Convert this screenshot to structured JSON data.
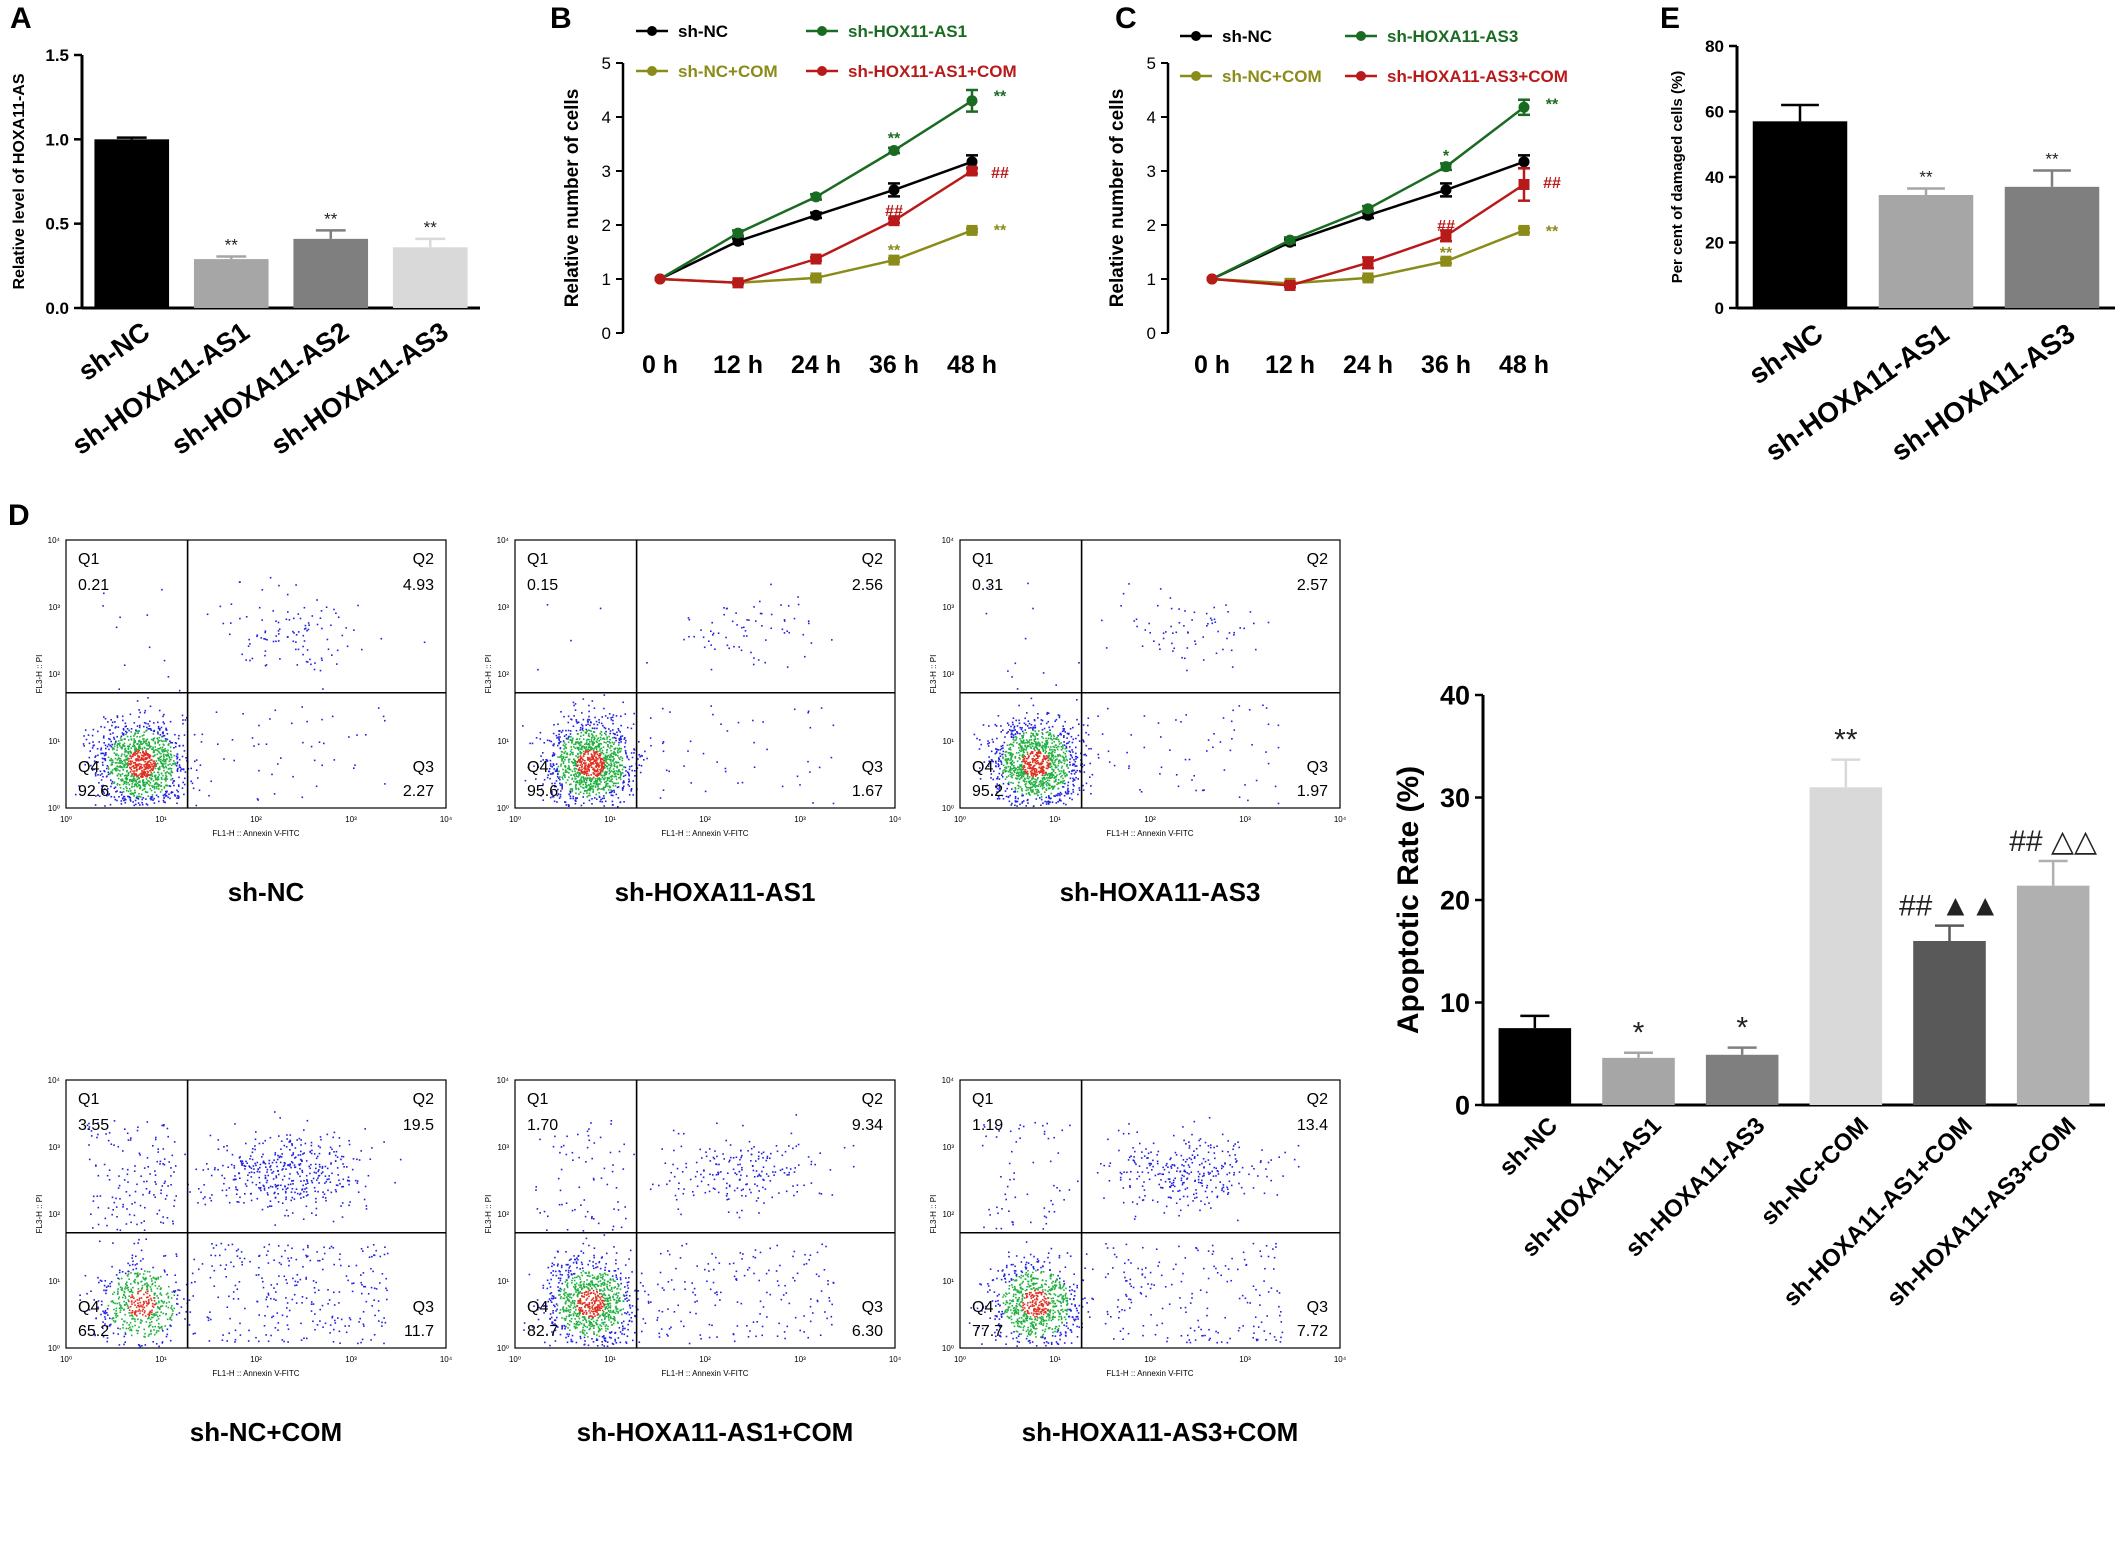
{
  "colors": {
    "black": "#000000",
    "green": "#1a6b22",
    "olive": "#8b8b1a",
    "red": "#b81a1a",
    "flow_low": "#2020e0",
    "flow_mid": "#20b040",
    "flow_high": "#e03020"
  },
  "chart_data": [
    {
      "panel": "A",
      "type": "bar",
      "ylabel": "Relative level of HOXA11-AS",
      "ylim": [
        0,
        1.5
      ],
      "yticks": [
        "0.0",
        "0.5",
        "1.0",
        "1.5"
      ],
      "categories": [
        "sh-NC",
        "sh-HOXA11-AS1",
        "sh-HOXA11-AS2",
        "sh-HOXA11-AS3"
      ],
      "values": [
        1.0,
        0.29,
        0.41,
        0.36
      ],
      "errors": [
        0.01,
        0.015,
        0.05,
        0.05
      ],
      "bar_colors": [
        "#000000",
        "#a6a6a6",
        "#7f7f7f",
        "#d9d9d9"
      ],
      "annotations": [
        "",
        "**",
        "**",
        "**"
      ]
    },
    {
      "panel": "B",
      "type": "line",
      "ylabel": "Relative number of cells",
      "ylim": [
        0,
        5
      ],
      "yticks": [
        "0",
        "1",
        "2",
        "3",
        "4",
        "5"
      ],
      "x": [
        "0 h",
        "12 h",
        "24 h",
        "36 h",
        "48 h"
      ],
      "series": [
        {
          "name": "sh-NC",
          "color": "#000000",
          "values": [
            1.0,
            1.7,
            2.18,
            2.65,
            3.17
          ],
          "errors": [
            0,
            0.05,
            0.05,
            0.12,
            0.12
          ]
        },
        {
          "name": "sh-HOX11-AS1",
          "color": "#1a6b22",
          "values": [
            1.0,
            1.85,
            2.52,
            3.38,
            4.3
          ],
          "errors": [
            0,
            0.05,
            0.05,
            0.05,
            0.2
          ]
        },
        {
          "name": "sh-NC+COM",
          "color": "#8b8b1a",
          "values": [
            1.0,
            0.93,
            1.02,
            1.35,
            1.9
          ],
          "errors": [
            0,
            0.02,
            0.03,
            0.03,
            0.03
          ]
        },
        {
          "name": "sh-HOX11-AS1+COM",
          "color": "#b81a1a",
          "values": [
            1.0,
            0.93,
            1.37,
            2.08,
            3.0
          ],
          "errors": [
            0,
            0.02,
            0.03,
            0.04,
            0.05
          ]
        }
      ],
      "annotations": [
        {
          "text": "**",
          "x": "36 h",
          "y": 3.62,
          "color": "#1a6b22"
        },
        {
          "text": "**",
          "x": "48 h",
          "y": 4.4,
          "color": "#1a6b22",
          "side": "right"
        },
        {
          "text": "##",
          "x": "36 h",
          "y": 2.28,
          "color": "#b81a1a"
        },
        {
          "text": "##",
          "x": "48 h",
          "y": 2.98,
          "color": "#b81a1a",
          "side": "right"
        },
        {
          "text": "**",
          "x": "36 h",
          "y": 1.55,
          "color": "#8b8b1a"
        },
        {
          "text": "**",
          "x": "48 h",
          "y": 1.92,
          "color": "#8b8b1a",
          "side": "right"
        }
      ]
    },
    {
      "panel": "C",
      "type": "line",
      "ylabel": "Relative number of cells",
      "ylim": [
        0,
        5
      ],
      "yticks": [
        "0",
        "1",
        "2",
        "3",
        "4",
        "5"
      ],
      "x": [
        "0 h",
        "12 h",
        "24 h",
        "36 h",
        "48 h"
      ],
      "series": [
        {
          "name": "sh-NC",
          "color": "#000000",
          "values": [
            1.0,
            1.68,
            2.18,
            2.65,
            3.17
          ],
          "errors": [
            0,
            0.05,
            0.05,
            0.12,
            0.12
          ]
        },
        {
          "name": "sh-HOXA11-AS3",
          "color": "#1a6b22",
          "values": [
            1.0,
            1.72,
            2.3,
            3.08,
            4.18
          ],
          "errors": [
            0,
            0.05,
            0.05,
            0.06,
            0.14
          ]
        },
        {
          "name": "sh-NC+COM",
          "color": "#8b8b1a",
          "values": [
            1.0,
            0.92,
            1.02,
            1.33,
            1.9
          ],
          "errors": [
            0,
            0.02,
            0.03,
            0.04,
            0.04
          ]
        },
        {
          "name": "sh-HOXA11-AS3+COM",
          "color": "#b81a1a",
          "values": [
            1.0,
            0.88,
            1.3,
            1.8,
            2.75
          ],
          "errors": [
            0,
            0.03,
            0.1,
            0.1,
            0.3
          ]
        }
      ],
      "annotations": [
        {
          "text": "*",
          "x": "36 h",
          "y": 3.3,
          "color": "#1a6b22"
        },
        {
          "text": "**",
          "x": "48 h",
          "y": 4.25,
          "color": "#1a6b22",
          "side": "right"
        },
        {
          "text": "##",
          "x": "36 h",
          "y": 2.0,
          "color": "#b81a1a"
        },
        {
          "text": "##",
          "x": "48 h",
          "y": 2.8,
          "color": "#b81a1a",
          "side": "right"
        },
        {
          "text": "**",
          "x": "36 h",
          "y": 1.5,
          "color": "#8b8b1a"
        },
        {
          "text": "**",
          "x": "48 h",
          "y": 1.9,
          "color": "#8b8b1a",
          "side": "right"
        }
      ]
    },
    {
      "panel": "E",
      "type": "bar",
      "ylabel": "Per cent of damaged cells (%)",
      "ylim": [
        0,
        80
      ],
      "yticks": [
        "0",
        "20",
        "40",
        "60",
        "80"
      ],
      "categories": [
        "sh-NC",
        "sh-HOXA11-AS1",
        "sh-HOXA11-AS3"
      ],
      "values": [
        57,
        34.5,
        37
      ],
      "errors": [
        5,
        2,
        5
      ],
      "bar_colors": [
        "#000000",
        "#a6a6a6",
        "#7f7f7f"
      ],
      "annotations": [
        "",
        "**",
        "**"
      ]
    },
    {
      "panel": "D",
      "type": "scatter",
      "xlabel": "FL1-H :: Annexin V-FITC",
      "ylabel": "FL3-H :: PI",
      "axis_scale": "log",
      "xticks": [
        "10⁰",
        "10¹",
        "10²",
        "10³",
        "10⁴"
      ],
      "yticks": [
        "10⁰",
        "10¹",
        "10²",
        "10³",
        "10⁴"
      ],
      "quadrant_labels": [
        "Q1",
        "Q2",
        "Q3",
        "Q4"
      ],
      "plots": [
        {
          "name": "sh-NC",
          "Q1": "0.21",
          "Q2": "4.93",
          "Q3": "2.27",
          "Q4": "92.6"
        },
        {
          "name": "sh-HOXA11-AS1",
          "Q1": "0.15",
          "Q2": "2.56",
          "Q3": "1.67",
          "Q4": "95.6"
        },
        {
          "name": "sh-HOXA11-AS3",
          "Q1": "0.31",
          "Q2": "2.57",
          "Q3": "1.97",
          "Q4": "95.2"
        },
        {
          "name": "sh-NC+COM",
          "Q1": "3.55",
          "Q2": "19.5",
          "Q3": "11.7",
          "Q4": "65.2"
        },
        {
          "name": "sh-HOXA11-AS1+COM",
          "Q1": "1.70",
          "Q2": "9.34",
          "Q3": "6.30",
          "Q4": "82.7"
        },
        {
          "name": "sh-HOXA11-AS3+COM",
          "Q1": "1.19",
          "Q2": "13.4",
          "Q3": "7.72",
          "Q4": "77.7"
        }
      ]
    },
    {
      "panel": "D-bar",
      "type": "bar",
      "ylabel": "Apoptotic Rate (%)",
      "ylim": [
        0,
        40
      ],
      "yticks": [
        "0",
        "10",
        "20",
        "30",
        "40"
      ],
      "categories": [
        "sh-NC",
        "sh-HOXA11-AS1",
        "sh-HOXA11-AS3",
        "sh-NC+COM",
        "sh-HOXA11-AS1+COM",
        "sh-HOXA11-AS3+COM"
      ],
      "values": [
        7.5,
        4.6,
        4.9,
        31,
        16,
        21.4
      ],
      "errors": [
        1.2,
        0.5,
        0.7,
        2.7,
        1.5,
        2.4
      ],
      "bar_colors": [
        "#000000",
        "#a6a6a6",
        "#7f7f7f",
        "#d9d9d9",
        "#595959",
        "#b0b0b0"
      ],
      "annotations": [
        "",
        "*",
        "*",
        "**",
        "## ▲▲",
        "##  △△"
      ]
    }
  ],
  "panel_labels": [
    "A",
    "B",
    "C",
    "E",
    "D"
  ]
}
